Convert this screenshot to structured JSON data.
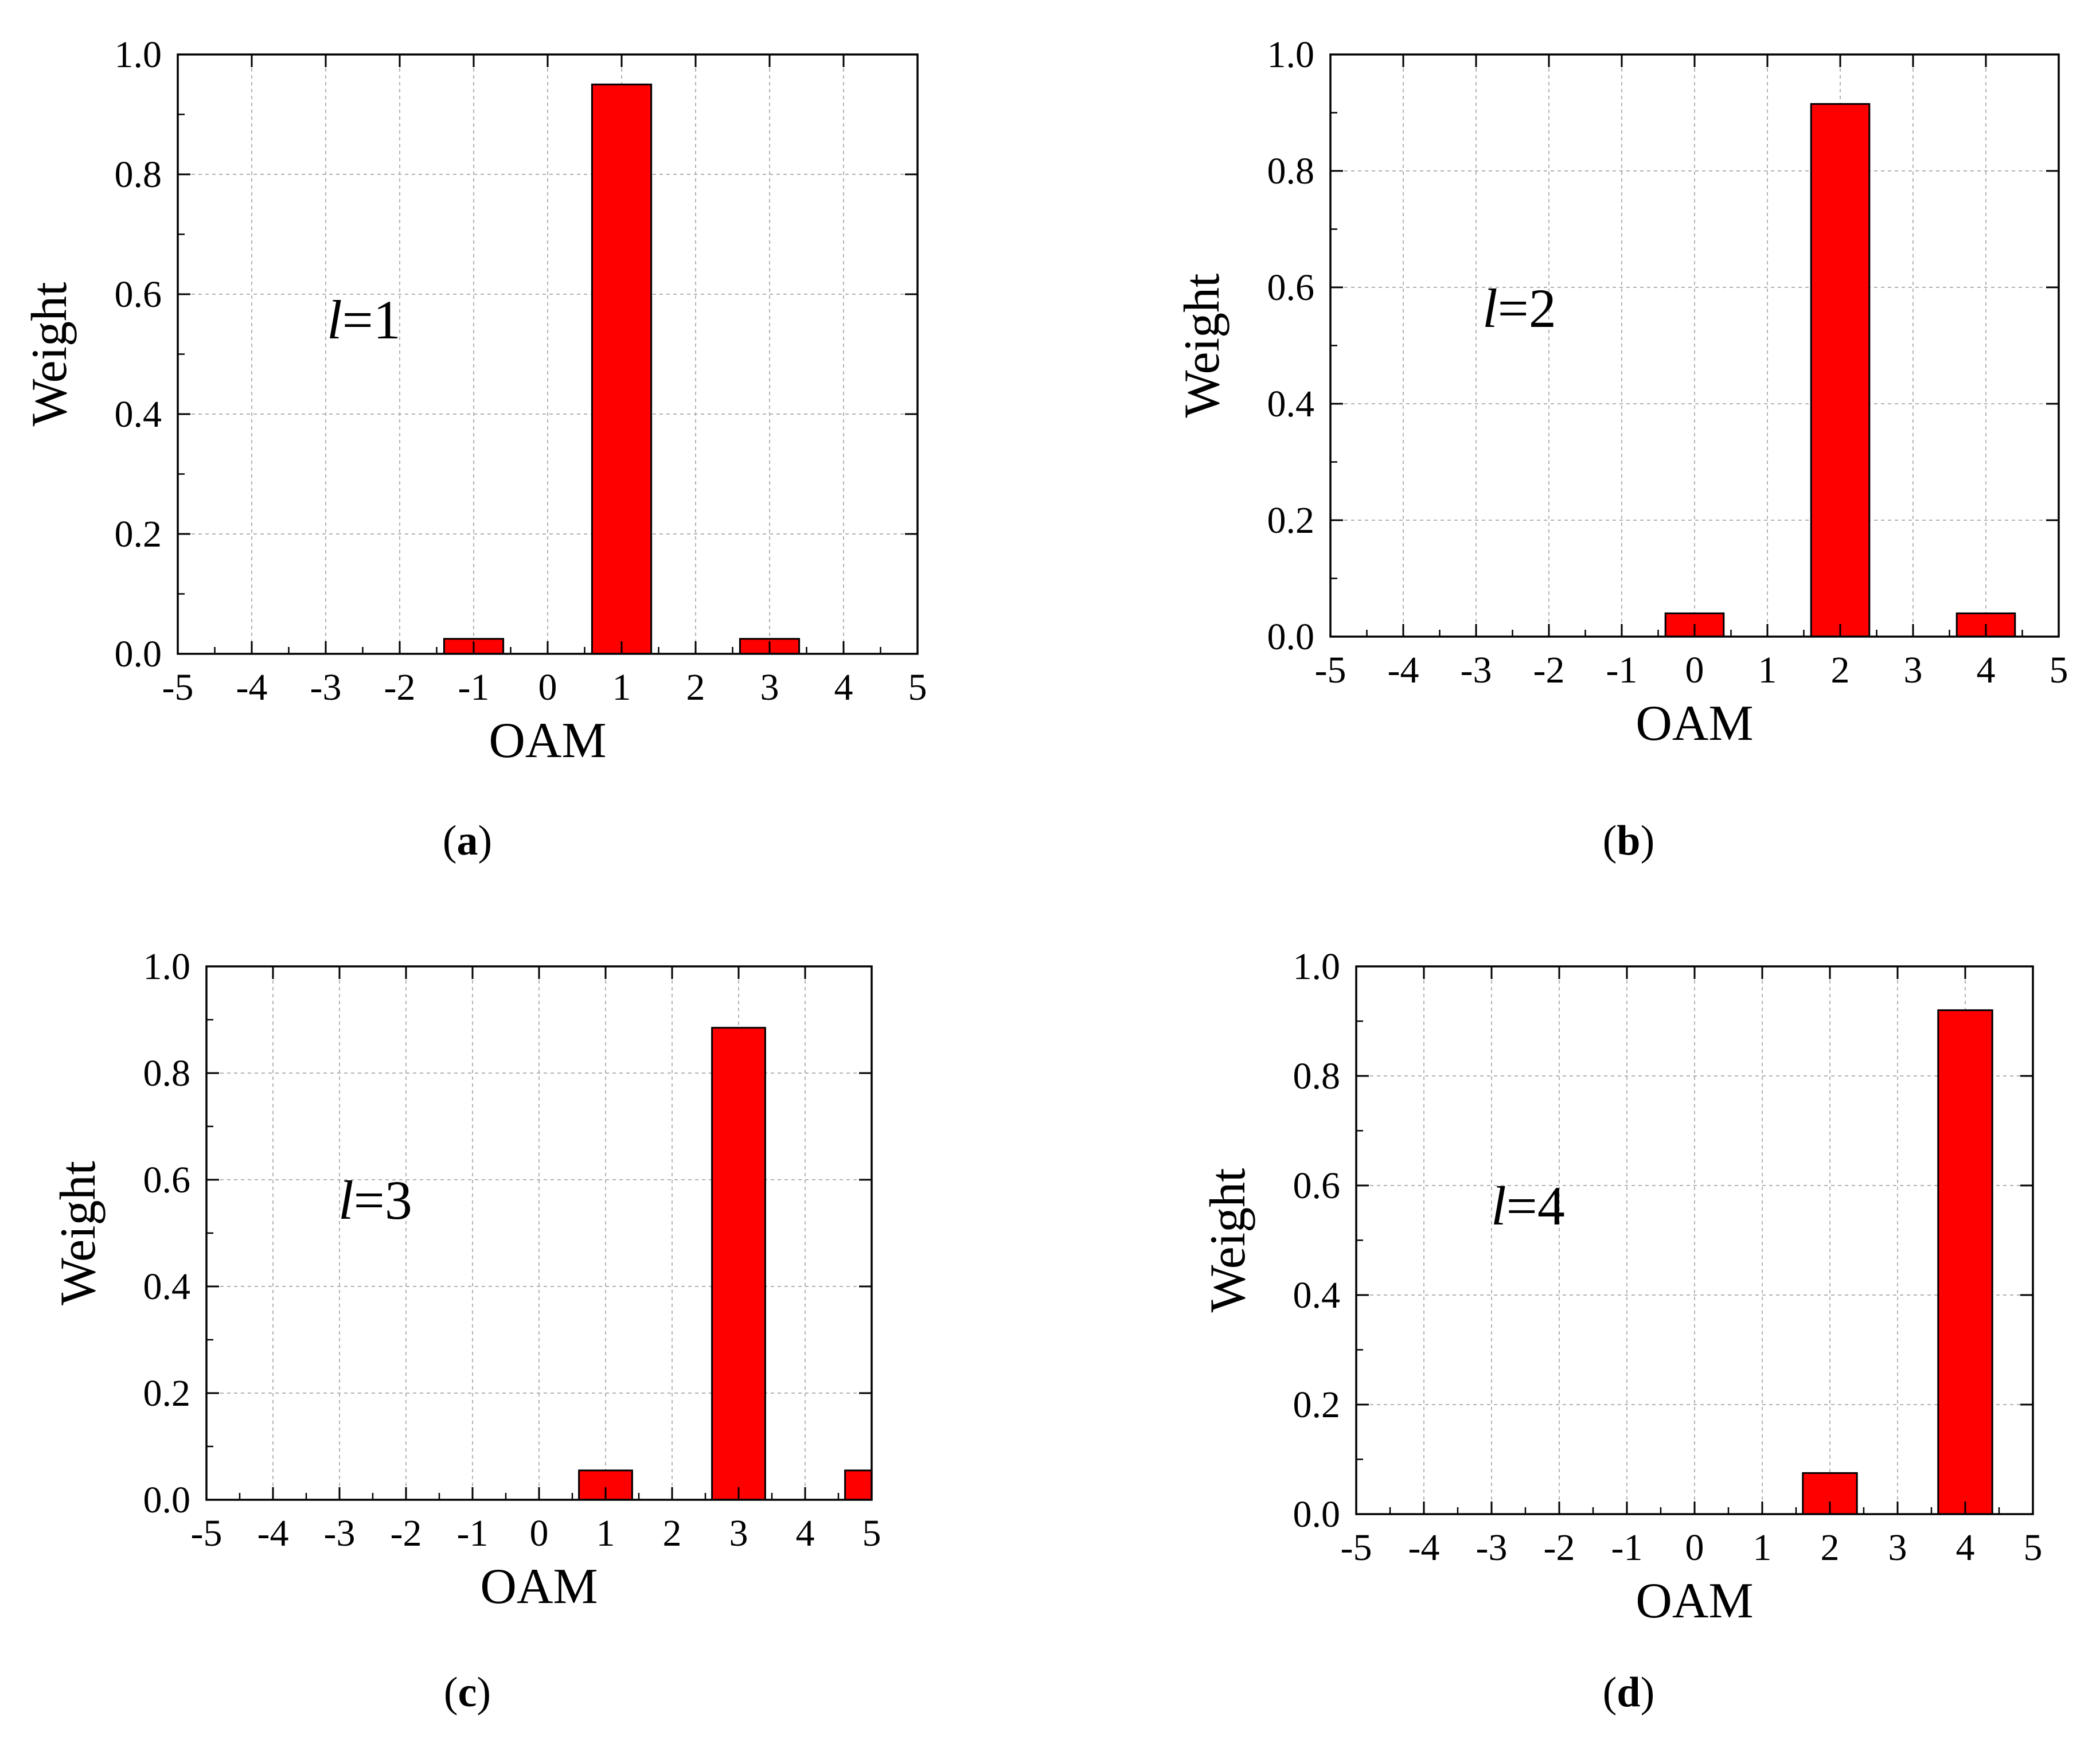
{
  "figure": {
    "panels": [
      {
        "label_open": "(",
        "label_letter": "a",
        "label_close": ")",
        "annotation_var": "l",
        "annotation_eq": "=1"
      },
      {
        "label_open": "(",
        "label_letter": "b",
        "label_close": ")",
        "annotation_var": "l",
        "annotation_eq": "=2"
      },
      {
        "label_open": "(",
        "label_letter": "c",
        "label_close": ")",
        "annotation_var": "l",
        "annotation_eq": "=3"
      },
      {
        "label_open": "(",
        "label_letter": "d",
        "label_close": ")",
        "annotation_var": "l",
        "annotation_eq": "=4"
      }
    ]
  },
  "colors": {
    "bar_fill": "#ff0000",
    "bar_stroke": "#000000",
    "grid": "#b3b3b3",
    "axis": "#000000"
  },
  "chart_data": [
    {
      "type": "bar",
      "xlabel": "OAM",
      "ylabel": "Weight",
      "xlim": [
        -5,
        5
      ],
      "ylim": [
        0,
        1.0
      ],
      "xticks": [
        "-5",
        "-4",
        "-3",
        "-2",
        "-1",
        "0",
        "1",
        "2",
        "3",
        "4",
        "5"
      ],
      "yticks": [
        "0.0",
        "0.2",
        "0.4",
        "0.6",
        "0.8",
        "1.0"
      ],
      "grid": true,
      "x": [
        -1,
        1,
        3
      ],
      "values": [
        0.025,
        0.95,
        0.025
      ]
    },
    {
      "type": "bar",
      "xlabel": "OAM",
      "ylabel": "Weight",
      "xlim": [
        -5,
        5
      ],
      "ylim": [
        0,
        1.0
      ],
      "xticks": [
        "-5",
        "-4",
        "-3",
        "-2",
        "-1",
        "0",
        "1",
        "2",
        "3",
        "4",
        "5"
      ],
      "yticks": [
        "0.0",
        "0.2",
        "0.4",
        "0.6",
        "0.8",
        "1.0"
      ],
      "grid": true,
      "x": [
        0,
        2,
        4
      ],
      "values": [
        0.04,
        0.915,
        0.04
      ]
    },
    {
      "type": "bar",
      "xlabel": "OAM",
      "ylabel": "Weight",
      "xlim": [
        -5,
        5
      ],
      "ylim": [
        0,
        1.0
      ],
      "xticks": [
        "-5",
        "-4",
        "-3",
        "-2",
        "-1",
        "0",
        "1",
        "2",
        "3",
        "4",
        "5"
      ],
      "yticks": [
        "0.0",
        "0.2",
        "0.4",
        "0.6",
        "0.8",
        "1.0"
      ],
      "grid": true,
      "x": [
        1,
        3,
        5
      ],
      "values": [
        0.055,
        0.885,
        0.055
      ]
    },
    {
      "type": "bar",
      "xlabel": "OAM",
      "ylabel": "Weight",
      "xlim": [
        -5,
        5
      ],
      "ylim": [
        0,
        1.0
      ],
      "xticks": [
        "-5",
        "-4",
        "-3",
        "-2",
        "-1",
        "0",
        "1",
        "2",
        "3",
        "4",
        "5"
      ],
      "yticks": [
        "0.0",
        "0.2",
        "0.4",
        "0.6",
        "0.8",
        "1.0"
      ],
      "grid": true,
      "x": [
        2,
        4
      ],
      "values": [
        0.075,
        0.92
      ]
    }
  ]
}
